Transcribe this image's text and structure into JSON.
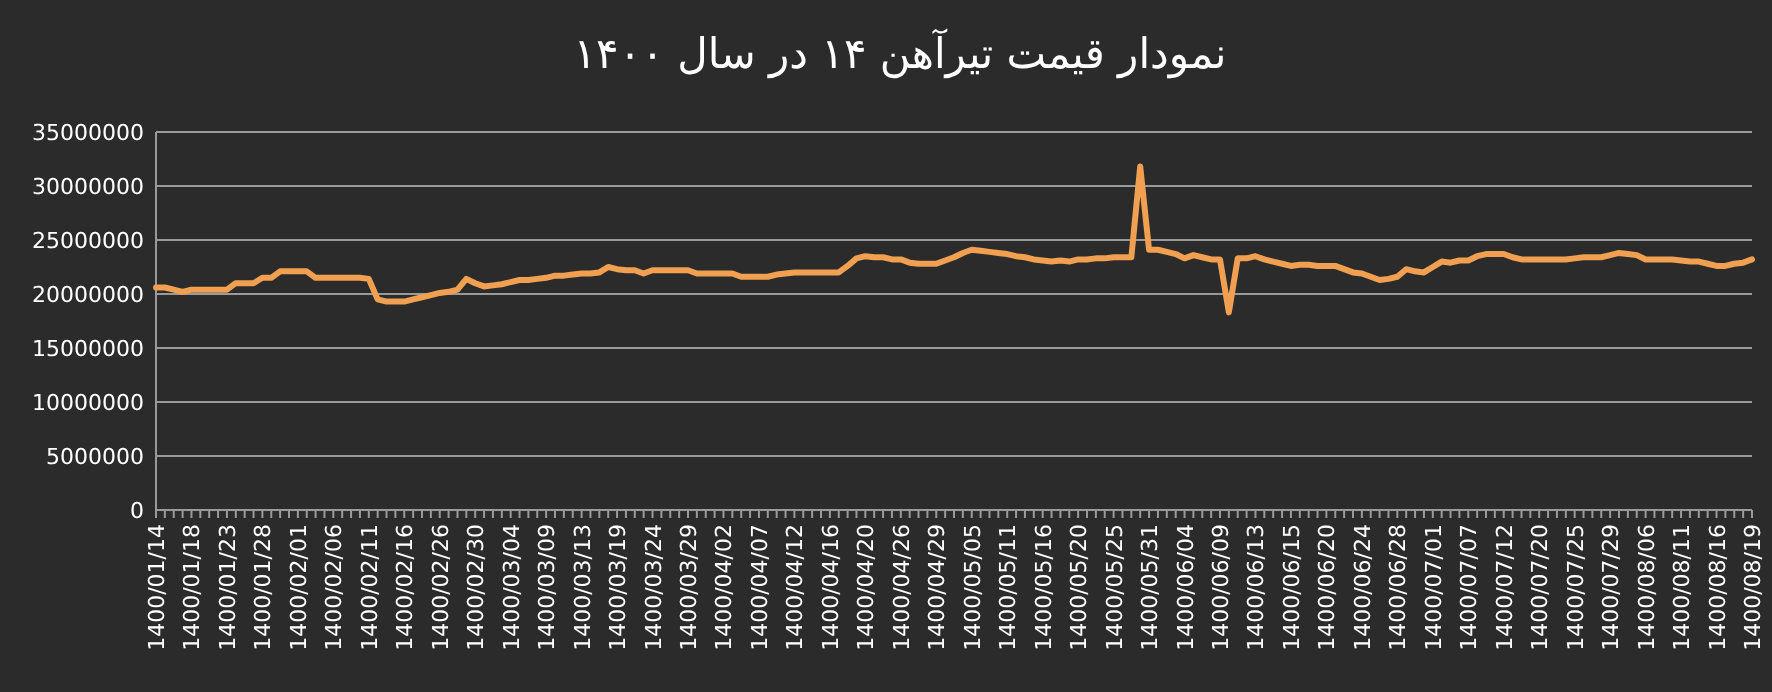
{
  "chart_data": {
    "type": "line",
    "title": "نمودار قیمت تیرآهن ۱۴ در سال ۱۴۰۰",
    "categories": [
      "1400/01/14",
      null,
      null,
      null,
      "1400/01/18",
      null,
      null,
      null,
      "1400/01/23",
      null,
      null,
      null,
      "1400/01/28",
      null,
      null,
      null,
      "1400/02/01",
      null,
      null,
      null,
      "1400/02/06",
      null,
      null,
      null,
      "1400/02/11",
      null,
      null,
      null,
      "1400/02/16",
      null,
      null,
      null,
      "1400/02/26",
      null,
      null,
      null,
      "1400/02/30",
      null,
      null,
      null,
      "1400/03/04",
      null,
      null,
      null,
      "1400/03/09",
      null,
      null,
      null,
      "1400/03/13",
      null,
      null,
      null,
      "1400/03/19",
      null,
      null,
      null,
      "1400/03/24",
      null,
      null,
      null,
      "1400/03/29",
      null,
      null,
      null,
      "1400/04/02",
      null,
      null,
      null,
      "1400/04/07",
      null,
      null,
      null,
      "1400/04/12",
      null,
      null,
      null,
      "1400/04/16",
      null,
      null,
      null,
      "1400/04/20",
      null,
      null,
      null,
      "1400/04/26",
      null,
      null,
      null,
      "1400/04/29",
      null,
      null,
      null,
      "1400/05/05",
      null,
      null,
      null,
      "1400/05/11",
      null,
      null,
      null,
      "1400/05/16",
      null,
      null,
      null,
      "1400/05/20",
      null,
      null,
      null,
      "1400/05/25",
      null,
      null,
      null,
      "1400/05/31",
      null,
      null,
      null,
      "1400/06/04",
      null,
      null,
      null,
      "1400/06/09",
      null,
      null,
      null,
      "1400/06/13",
      null,
      null,
      null,
      "1400/06/15",
      null,
      null,
      null,
      "1400/06/20",
      null,
      null,
      null,
      "1400/06/24",
      null,
      null,
      null,
      "1400/06/28",
      null,
      null,
      null,
      "1400/07/01",
      null,
      null,
      null,
      "1400/07/07",
      null,
      null,
      null,
      "1400/07/12",
      null,
      null,
      null,
      "1400/07/20",
      null,
      null,
      null,
      "1400/07/25",
      null,
      null,
      null,
      "1400/07/29",
      null,
      null,
      null,
      "1400/08/06",
      null,
      null,
      null,
      "1400/08/11",
      null,
      null,
      null,
      "1400/08/16",
      null,
      null,
      null,
      "1400/08/19"
    ],
    "series": [
      {
        "color": "#f0a050",
        "values": [
          20600000,
          20600000,
          20400000,
          20200000,
          20400000,
          20400000,
          20400000,
          20400000,
          20400000,
          21000000,
          21000000,
          21000000,
          21500000,
          21500000,
          22100000,
          22100000,
          22100000,
          22100000,
          21500000,
          21500000,
          21500000,
          21500000,
          21500000,
          21500000,
          21400000,
          19500000,
          19300000,
          19300000,
          19300000,
          19500000,
          19700000,
          19900000,
          20100000,
          20200000,
          20400000,
          21400000,
          21000000,
          20700000,
          20800000,
          20900000,
          21100000,
          21300000,
          21300000,
          21400000,
          21500000,
          21700000,
          21700000,
          21800000,
          21900000,
          21900000,
          22000000,
          22500000,
          22300000,
          22200000,
          22200000,
          21900000,
          22200000,
          22200000,
          22200000,
          22200000,
          22200000,
          21900000,
          21900000,
          21900000,
          21900000,
          21900000,
          21600000,
          21600000,
          21600000,
          21600000,
          21800000,
          21900000,
          22000000,
          22000000,
          22000000,
          22000000,
          22000000,
          22000000,
          22600000,
          23300000,
          23500000,
          23400000,
          23400000,
          23200000,
          23200000,
          22900000,
          22800000,
          22800000,
          22800000,
          23100000,
          23400000,
          23800000,
          24100000,
          24000000,
          23900000,
          23800000,
          23700000,
          23500000,
          23400000,
          23200000,
          23100000,
          23000000,
          23100000,
          23000000,
          23200000,
          23200000,
          23300000,
          23300000,
          23400000,
          23400000,
          23400000,
          31800000,
          24100000,
          24100000,
          23900000,
          23700000,
          23300000,
          23600000,
          23400000,
          23200000,
          23200000,
          18300000,
          23300000,
          23300000,
          23500000,
          23200000,
          23000000,
          22800000,
          22600000,
          22700000,
          22700000,
          22600000,
          22600000,
          22600000,
          22300000,
          22000000,
          21900000,
          21600000,
          21300000,
          21400000,
          21600000,
          22300000,
          22100000,
          22000000,
          22500000,
          23000000,
          22900000,
          23100000,
          23100000,
          23500000,
          23700000,
          23700000,
          23700000,
          23400000,
          23200000,
          23200000,
          23200000,
          23200000,
          23200000,
          23200000,
          23300000,
          23400000,
          23400000,
          23400000,
          23600000,
          23800000,
          23700000,
          23600000,
          23200000,
          23200000,
          23200000,
          23200000,
          23100000,
          23000000,
          23000000,
          22800000,
          22600000,
          22600000,
          22800000,
          22900000,
          23200000
        ]
      }
    ],
    "ylim": [
      0,
      35000000
    ],
    "yticks": [
      0,
      5000000,
      10000000,
      15000000,
      20000000,
      25000000,
      30000000,
      35000000
    ],
    "grid": "y",
    "marker": "none",
    "line_style": "solid"
  }
}
